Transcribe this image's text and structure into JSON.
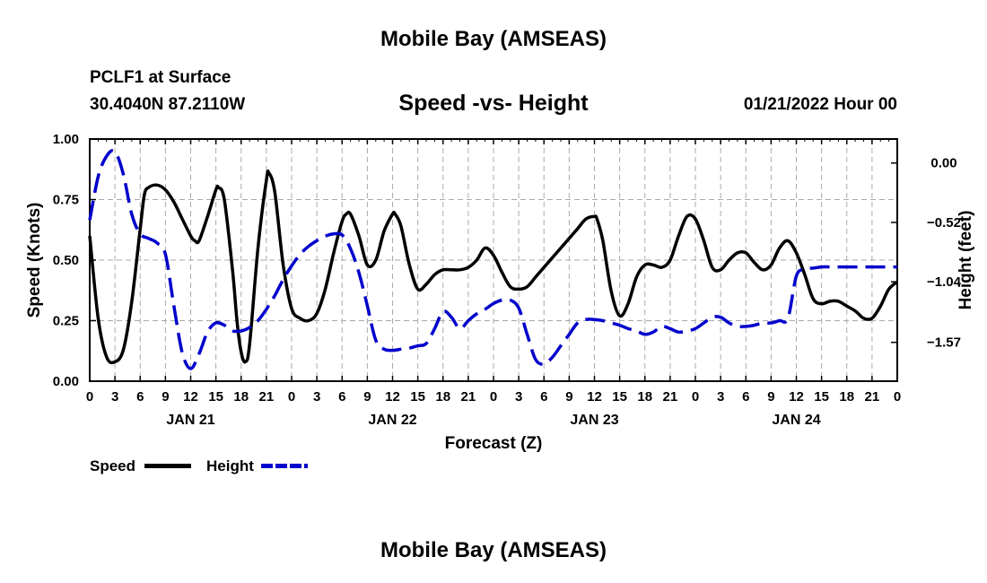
{
  "header": {
    "title": "Mobile Bay (AMSEAS)",
    "station": "PCLF1 at Surface",
    "coords": "30.4040N  87.2110W",
    "chart_title": "Speed -vs- Height",
    "date": "01/21/2022 Hour 00"
  },
  "footer": {
    "title": "Mobile Bay (AMSEAS)"
  },
  "legend": {
    "speed_label": "Speed",
    "height_label": "Height"
  },
  "colors": {
    "speed": "#000000",
    "height": "#0000cc",
    "grid": "#aaaaaa"
  },
  "chart_data": {
    "type": "line",
    "title": "Speed -vs- Height",
    "xlabel": "Forecast (Z)",
    "ylabel": "Speed (Knots)",
    "ylabel2": "Height (feet)",
    "x_hours": [
      0,
      96
    ],
    "x_tick_labels": [
      "0",
      "3",
      "6",
      "9",
      "12",
      "15",
      "18",
      "21",
      "0",
      "3",
      "6",
      "9",
      "12",
      "15",
      "18",
      "21",
      "0",
      "3",
      "6",
      "9",
      "12",
      "15",
      "18",
      "21",
      "0",
      "3",
      "6",
      "9",
      "12",
      "15",
      "18",
      "21",
      "0"
    ],
    "day_labels": [
      {
        "hour": 12,
        "label": "JAN 21"
      },
      {
        "hour": 36,
        "label": "JAN 22"
      },
      {
        "hour": 60,
        "label": "JAN 23"
      },
      {
        "hour": 84,
        "label": "JAN 24"
      }
    ],
    "y_left": {
      "range": [
        0,
        1
      ],
      "ticks": [
        0,
        0.25,
        0.5,
        0.75,
        1
      ],
      "tick_labels": [
        "0.00",
        "0.25",
        "0.50",
        "0.75",
        "1.00"
      ]
    },
    "y_right": {
      "range": [
        -1.91,
        0.21
      ],
      "ticks": [
        0,
        -0.52,
        -1.04,
        -1.57
      ],
      "tick_labels": [
        "0.00",
        "−0.52",
        "−1.04",
        "−1.57"
      ]
    },
    "series": [
      {
        "name": "Speed",
        "axis": "left",
        "style": "solid",
        "x": [
          0,
          1,
          2,
          3,
          4,
          5,
          6,
          6.5,
          7,
          8,
          9,
          10,
          11,
          12,
          12.5,
          13,
          14,
          15,
          15.3,
          16,
          17,
          17.5,
          18,
          18.5,
          19,
          20,
          21,
          21.3,
          22,
          23,
          24,
          25,
          26,
          27,
          28,
          29,
          30,
          30.5,
          31,
          32,
          33,
          34,
          35,
          36,
          36.3,
          37,
          38,
          39,
          40,
          41,
          42,
          43,
          44,
          45,
          46,
          47,
          48,
          49,
          50,
          51,
          52,
          53,
          54,
          55,
          56,
          57,
          58,
          59,
          60,
          60.3,
          61,
          62,
          63,
          64,
          65,
          66,
          67,
          68,
          69,
          70,
          71,
          72,
          73,
          74,
          75,
          76,
          77,
          78,
          79,
          80,
          81,
          82,
          83,
          84,
          85,
          86,
          87,
          88,
          89,
          90,
          91,
          92,
          93,
          94,
          95,
          96
        ],
        "y": [
          0.6,
          0.26,
          0.1,
          0.08,
          0.13,
          0.33,
          0.63,
          0.77,
          0.8,
          0.81,
          0.79,
          0.74,
          0.67,
          0.6,
          0.58,
          0.58,
          0.68,
          0.79,
          0.8,
          0.75,
          0.45,
          0.25,
          0.12,
          0.08,
          0.15,
          0.55,
          0.83,
          0.86,
          0.78,
          0.48,
          0.3,
          0.26,
          0.25,
          0.28,
          0.38,
          0.53,
          0.66,
          0.69,
          0.69,
          0.6,
          0.48,
          0.5,
          0.62,
          0.69,
          0.69,
          0.64,
          0.48,
          0.38,
          0.4,
          0.44,
          0.46,
          0.46,
          0.46,
          0.47,
          0.5,
          0.55,
          0.52,
          0.45,
          0.39,
          0.38,
          0.39,
          0.43,
          0.47,
          0.51,
          0.55,
          0.59,
          0.63,
          0.67,
          0.68,
          0.67,
          0.58,
          0.37,
          0.27,
          0.32,
          0.43,
          0.48,
          0.48,
          0.47,
          0.5,
          0.6,
          0.68,
          0.67,
          0.58,
          0.47,
          0.46,
          0.5,
          0.53,
          0.53,
          0.49,
          0.46,
          0.48,
          0.55,
          0.58,
          0.53,
          0.44,
          0.34,
          0.32,
          0.33,
          0.33,
          0.31,
          0.29,
          0.26,
          0.26,
          0.31,
          0.38,
          0.41
        ]
      },
      {
        "name": "Height",
        "axis": "right",
        "style": "dashed",
        "x": [
          0,
          1,
          2,
          3,
          4,
          5,
          6,
          7,
          8,
          9,
          10,
          11,
          12,
          13,
          14,
          15,
          16,
          17,
          18,
          19,
          20,
          21,
          22,
          23,
          24,
          25,
          26,
          27,
          28,
          29,
          30,
          31,
          32,
          33,
          34,
          35,
          36,
          37,
          38,
          39,
          40,
          41,
          42,
          43,
          44,
          45,
          46,
          47,
          48,
          49,
          50,
          51,
          52,
          53,
          54,
          55,
          56,
          57,
          58,
          59,
          60,
          61,
          62,
          63,
          64,
          65,
          66,
          67,
          68,
          69,
          70,
          71,
          72,
          73,
          74,
          75,
          76,
          77,
          78,
          79,
          80,
          81,
          82,
          83,
          84,
          85,
          86,
          87,
          88,
          89,
          90,
          91,
          92,
          93,
          94,
          95,
          96
        ],
        "y": [
          -0.5,
          -0.12,
          0.06,
          0.1,
          -0.1,
          -0.45,
          -0.62,
          -0.66,
          -0.7,
          -0.8,
          -1.25,
          -1.66,
          -1.8,
          -1.67,
          -1.48,
          -1.4,
          -1.42,
          -1.47,
          -1.47,
          -1.44,
          -1.38,
          -1.28,
          -1.16,
          -1.02,
          -0.9,
          -0.8,
          -0.73,
          -0.68,
          -0.64,
          -0.62,
          -0.63,
          -0.75,
          -0.96,
          -1.25,
          -1.55,
          -1.63,
          -1.64,
          -1.63,
          -1.62,
          -1.6,
          -1.58,
          -1.45,
          -1.3,
          -1.35,
          -1.45,
          -1.38,
          -1.32,
          -1.28,
          -1.23,
          -1.2,
          -1.2,
          -1.27,
          -1.5,
          -1.72,
          -1.76,
          -1.7,
          -1.6,
          -1.5,
          -1.4,
          -1.37,
          -1.37,
          -1.38,
          -1.4,
          -1.42,
          -1.45,
          -1.47,
          -1.5,
          -1.48,
          -1.43,
          -1.45,
          -1.48,
          -1.47,
          -1.45,
          -1.4,
          -1.35,
          -1.35,
          -1.4,
          -1.43,
          -1.43,
          -1.42,
          -1.4,
          -1.4,
          -1.38,
          -1.36,
          -0.99,
          -0.93,
          -0.92,
          -0.91,
          -0.91,
          -0.91,
          -0.91,
          -0.91,
          -0.91,
          -0.91,
          -0.91,
          -0.91,
          -0.91
        ]
      }
    ]
  }
}
